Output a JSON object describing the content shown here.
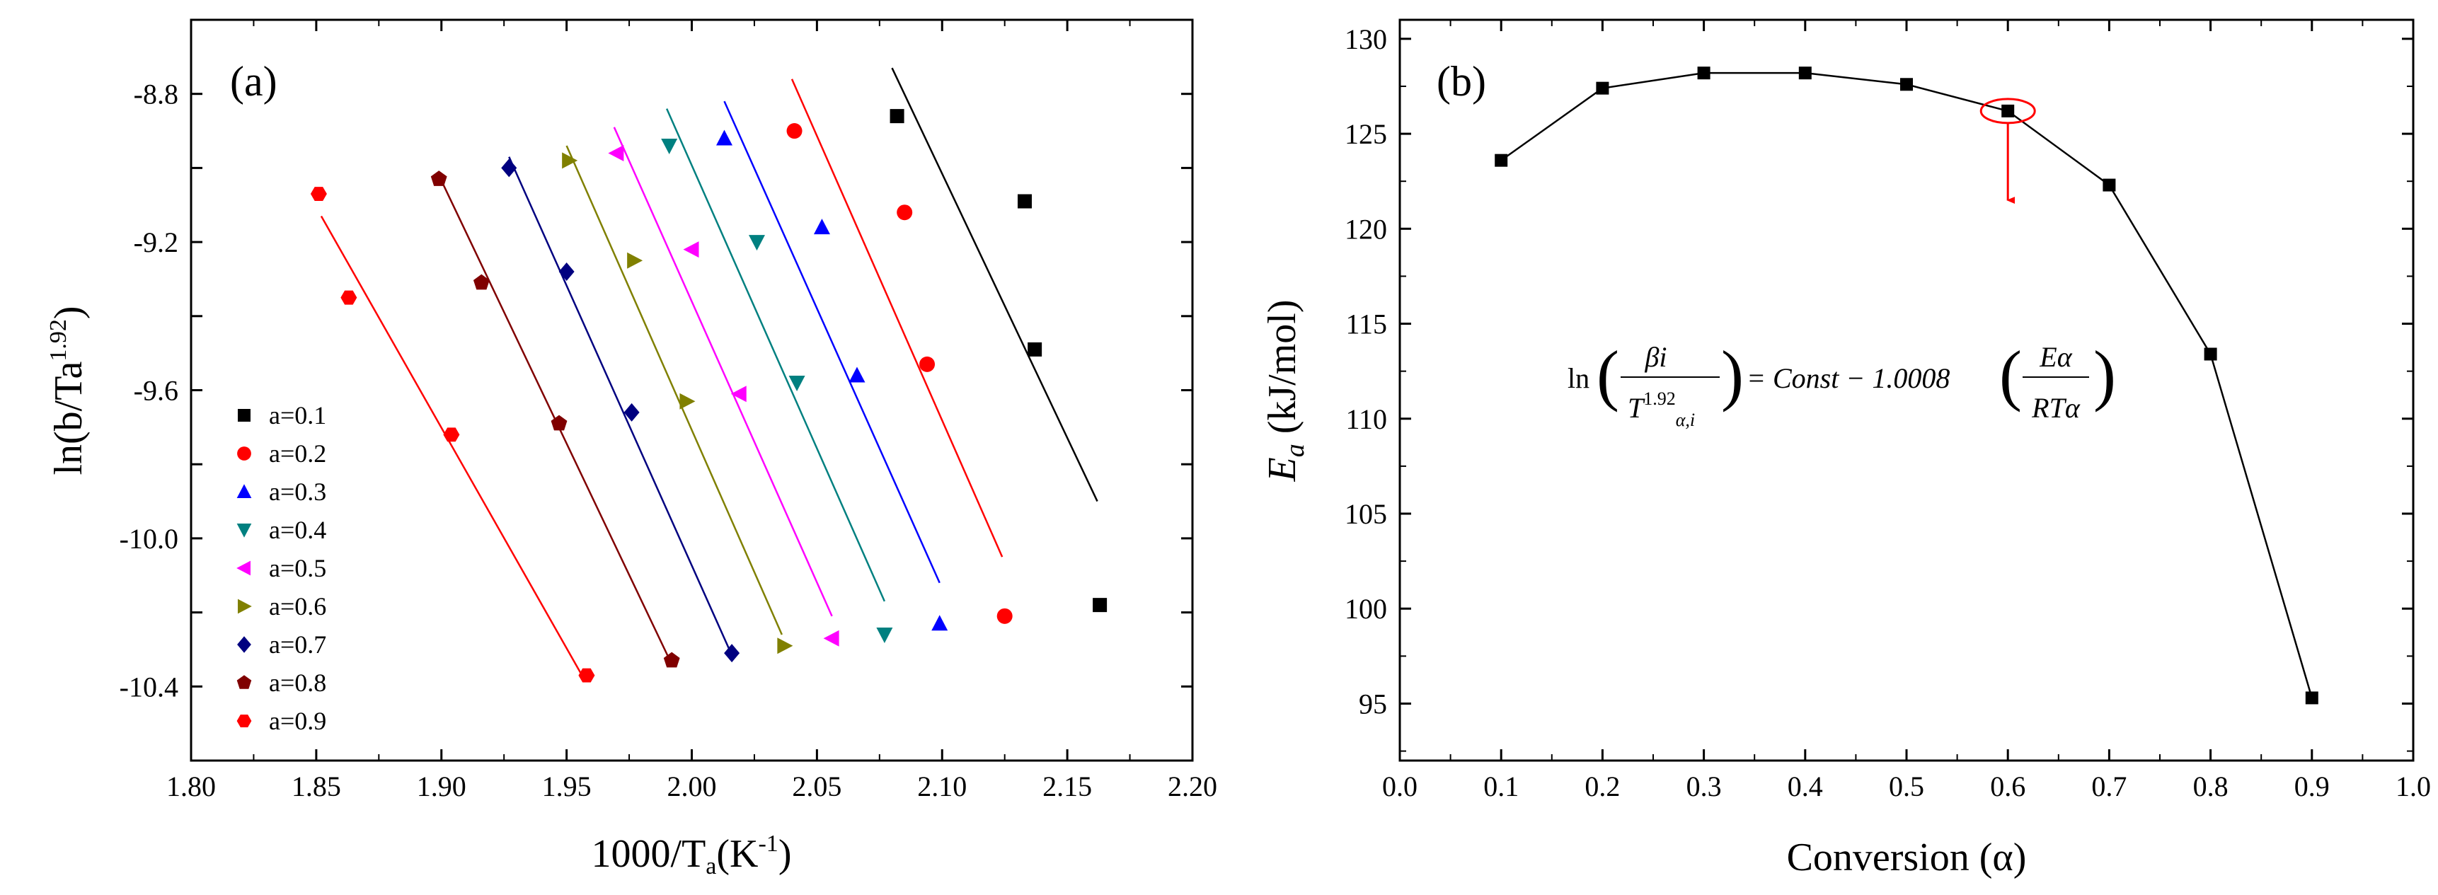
{
  "figure_title": "",
  "chart_data": [
    {
      "type": "scatter",
      "panel_label": "(a)",
      "title": "",
      "xlabel": "1000/Ta(K-1)",
      "xlabel_parts": {
        "main": "1000/T",
        "sub": "a",
        "open": "(K",
        "sup": "-1",
        "close": ")"
      },
      "ylabel": "ln(b/Ta1.92)",
      "ylabel_parts": {
        "main": "ln(b/Ta",
        "sup": "1.92",
        "close": ")"
      },
      "xlim": [
        1.8,
        2.2
      ],
      "ylim": [
        -10.6,
        -8.6
      ],
      "x_ticks": [
        "1.80",
        "1.85",
        "1.90",
        "1.95",
        "2.00",
        "2.05",
        "2.10",
        "2.15",
        "2.20"
      ],
      "y_ticks": [
        "-8.8",
        "-9.2",
        "-9.6",
        "-10.0",
        "-10.4"
      ],
      "legend_position": "lower-left",
      "series": [
        {
          "name": "a=0.1",
          "color": "#000000",
          "marker": "square",
          "x": [
            2.082,
            2.133,
            2.137,
            2.163
          ],
          "y": [
            -8.86,
            -9.09,
            -9.49,
            -10.18
          ],
          "fit": {
            "x": [
              2.08,
              2.162
            ],
            "y": [
              -8.73,
              -9.9
            ]
          }
        },
        {
          "name": "a=0.2",
          "color": "#ff0000",
          "marker": "circle",
          "x": [
            2.041,
            2.085,
            2.094,
            2.125
          ],
          "y": [
            -8.9,
            -9.12,
            -9.53,
            -10.21
          ],
          "fit": {
            "x": [
              2.04,
              2.124
            ],
            "y": [
              -8.76,
              -10.05
            ]
          }
        },
        {
          "name": "a=0.3",
          "color": "#0000ff",
          "marker": "triangle-up",
          "x": [
            2.013,
            2.052,
            2.066,
            2.099
          ],
          "y": [
            -8.92,
            -9.16,
            -9.56,
            -10.23
          ],
          "fit": {
            "x": [
              2.013,
              2.099
            ],
            "y": [
              -8.82,
              -10.12
            ]
          }
        },
        {
          "name": "a=0.4",
          "color": "#008080",
          "marker": "triangle-down",
          "x": [
            1.991,
            2.026,
            2.042,
            2.077
          ],
          "y": [
            -8.94,
            -9.2,
            -9.58,
            -10.26
          ],
          "fit": {
            "x": [
              1.99,
              2.077
            ],
            "y": [
              -8.84,
              -10.17
            ]
          }
        },
        {
          "name": "a=0.5",
          "color": "#ff00ff",
          "marker": "triangle-left",
          "x": [
            1.97,
            2.0,
            2.019,
            2.056
          ],
          "y": [
            -8.96,
            -9.22,
            -9.61,
            -10.27
          ],
          "fit": {
            "x": [
              1.969,
              2.056
            ],
            "y": [
              -8.89,
              -10.21
            ]
          }
        },
        {
          "name": "a=0.6",
          "color": "#808000",
          "marker": "triangle-right",
          "x": [
            1.951,
            1.977,
            1.998,
            2.037
          ],
          "y": [
            -8.98,
            -9.25,
            -9.63,
            -10.29
          ],
          "fit": {
            "x": [
              1.95,
              2.036
            ],
            "y": [
              -8.94,
              -10.26
            ]
          }
        },
        {
          "name": "a=0.7",
          "color": "#000080",
          "marker": "diamond",
          "x": [
            1.927,
            1.95,
            1.976,
            2.016
          ],
          "y": [
            -9.0,
            -9.28,
            -9.66,
            -10.31
          ],
          "fit": {
            "x": [
              1.927,
              2.015
            ],
            "y": [
              -8.97,
              -10.3
            ]
          }
        },
        {
          "name": "a=0.8",
          "color": "#800000",
          "marker": "pentagon",
          "x": [
            1.899,
            1.916,
            1.947,
            1.992
          ],
          "y": [
            -9.03,
            -9.31,
            -9.69,
            -10.33
          ],
          "fit": {
            "x": [
              1.899,
              1.992
            ],
            "y": [
              -9.02,
              -10.34
            ]
          }
        },
        {
          "name": "a=0.9",
          "color": "#ff0000",
          "marker": "hexagon",
          "x": [
            1.851,
            1.863,
            1.904,
            1.958
          ],
          "y": [
            -9.07,
            -9.35,
            -9.72,
            -10.37
          ],
          "fit": {
            "x": [
              1.852,
              1.957
            ],
            "y": [
              -9.13,
              -10.38
            ]
          }
        }
      ]
    },
    {
      "type": "line",
      "panel_label": "(b)",
      "title": "",
      "xlabel": "Conversion (α)",
      "ylabel": "Ea (kJ/mol)",
      "ylabel_parts": {
        "main": "E",
        "sub": "a",
        "rest": " (kJ/mol)"
      },
      "xlim": [
        0.0,
        1.0
      ],
      "ylim": [
        92,
        131
      ],
      "x_ticks": [
        "0.0",
        "0.1",
        "0.2",
        "0.3",
        "0.4",
        "0.5",
        "0.6",
        "0.7",
        "0.8",
        "0.9",
        "1.0"
      ],
      "y_ticks": [
        "95",
        "100",
        "105",
        "110",
        "115",
        "120",
        "125",
        "130"
      ],
      "series": [
        {
          "name": "Ea",
          "color": "#000000",
          "marker": "square",
          "x": [
            0.1,
            0.2,
            0.3,
            0.4,
            0.5,
            0.6,
            0.7,
            0.8,
            0.9
          ],
          "y": [
            123.6,
            127.4,
            128.2,
            128.2,
            127.6,
            126.2,
            122.3,
            113.4,
            95.3
          ]
        }
      ],
      "highlight": {
        "x": 0.6,
        "y": 126.2,
        "color": "#ff0000",
        "arrow_to_y": 121.5
      },
      "equation": {
        "ln": "ln",
        "num": "βi",
        "den_T": "T",
        "den_sup": "1.92",
        "den_sub": "α,i",
        "eq": "= Const − 1.0008",
        "frac2_num": "Eα",
        "frac2_den": "RTα"
      }
    }
  ]
}
